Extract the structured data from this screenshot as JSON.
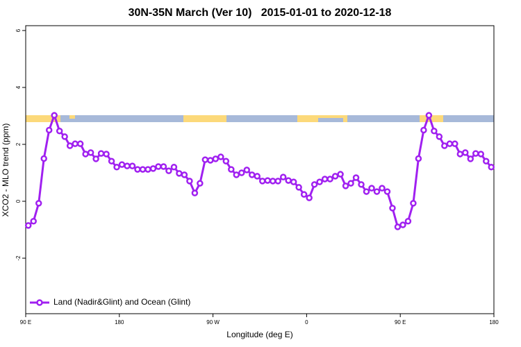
{
  "chart_data": {
    "type": "line",
    "title": "30N-35N March (Ver 10)   2015-01-01 to 2020-12-18",
    "xlabel": "Longitude (deg E)",
    "ylabel": "XCO2 - MLO trend (ppm)",
    "xlim": [
      90,
      540
    ],
    "ylim": [
      -3.95,
      6.17
    ],
    "xticks": [
      {
        "value": 90,
        "label": "90 E"
      },
      180,
      {
        "value": 270,
        "label": "90 W"
      },
      {
        "value": 360,
        "label": "0"
      },
      {
        "value": 450,
        "label": "90 E"
      },
      {
        "value": 540,
        "label": "180"
      }
    ],
    "yticks": [
      -2,
      0,
      2,
      4,
      6
    ],
    "legend": "bottom-left",
    "x": [
      92.5,
      97.5,
      102.5,
      107.5,
      112.5,
      117.5,
      122.5,
      127.5,
      132.5,
      137.5,
      142.5,
      147.5,
      152.5,
      157.5,
      162.5,
      167.5,
      172.5,
      177.5,
      182.5,
      187.5,
      192.5,
      197.5,
      202.5,
      207.5,
      212.5,
      217.5,
      222.5,
      227.5,
      232.5,
      237.5,
      242.5,
      247.5,
      252.5,
      257.5,
      262.5,
      267.5,
      272.5,
      277.5,
      282.5,
      287.5,
      292.5,
      297.5,
      302.5,
      307.5,
      312.5,
      317.5,
      322.5,
      327.5,
      332.5,
      337.5,
      342.5,
      347.5,
      352.5,
      357.5,
      362.5,
      367.5,
      372.5,
      377.5,
      382.5,
      387.5,
      392.5,
      397.5,
      402.5,
      407.5,
      412.5,
      417.5,
      422.5,
      427.5,
      432.5,
      437.5,
      442.5,
      447.5,
      452.5,
      457.5,
      462.5,
      467.5,
      472.5,
      477.5,
      482.5,
      487.5,
      492.5,
      497.5,
      502.5,
      507.5,
      512.5,
      517.5,
      522.5,
      527.5,
      532.5,
      537.5
    ],
    "series": [
      {
        "name": "Land (Nadir&Glint) and Ocean (Glint)",
        "color": "#a020f0",
        "values": [
          -0.85,
          -0.7,
          -0.07,
          1.5,
          2.5,
          3.02,
          2.47,
          2.27,
          1.95,
          2.02,
          2.02,
          1.66,
          1.71,
          1.49,
          1.68,
          1.66,
          1.41,
          1.2,
          1.29,
          1.24,
          1.24,
          1.12,
          1.12,
          1.12,
          1.15,
          1.22,
          1.22,
          1.07,
          1.2,
          0.98,
          0.93,
          0.71,
          0.29,
          0.63,
          1.46,
          1.44,
          1.49,
          1.56,
          1.41,
          1.12,
          0.93,
          1.0,
          1.1,
          0.93,
          0.88,
          0.71,
          0.73,
          0.71,
          0.71,
          0.85,
          0.73,
          0.68,
          0.49,
          0.24,
          0.12,
          0.59,
          0.68,
          0.78,
          0.78,
          0.88,
          0.95,
          0.54,
          0.63,
          0.83,
          0.59,
          0.34,
          0.46,
          0.34,
          0.46,
          0.34,
          -0.24,
          -0.9,
          -0.83,
          -0.7,
          -0.07,
          1.5,
          2.5,
          3.02,
          2.47,
          2.27,
          1.95,
          2.02,
          2.02,
          1.66,
          1.71,
          1.49,
          1.68,
          1.66,
          1.41,
          1.2
        ]
      }
    ]
  }
}
